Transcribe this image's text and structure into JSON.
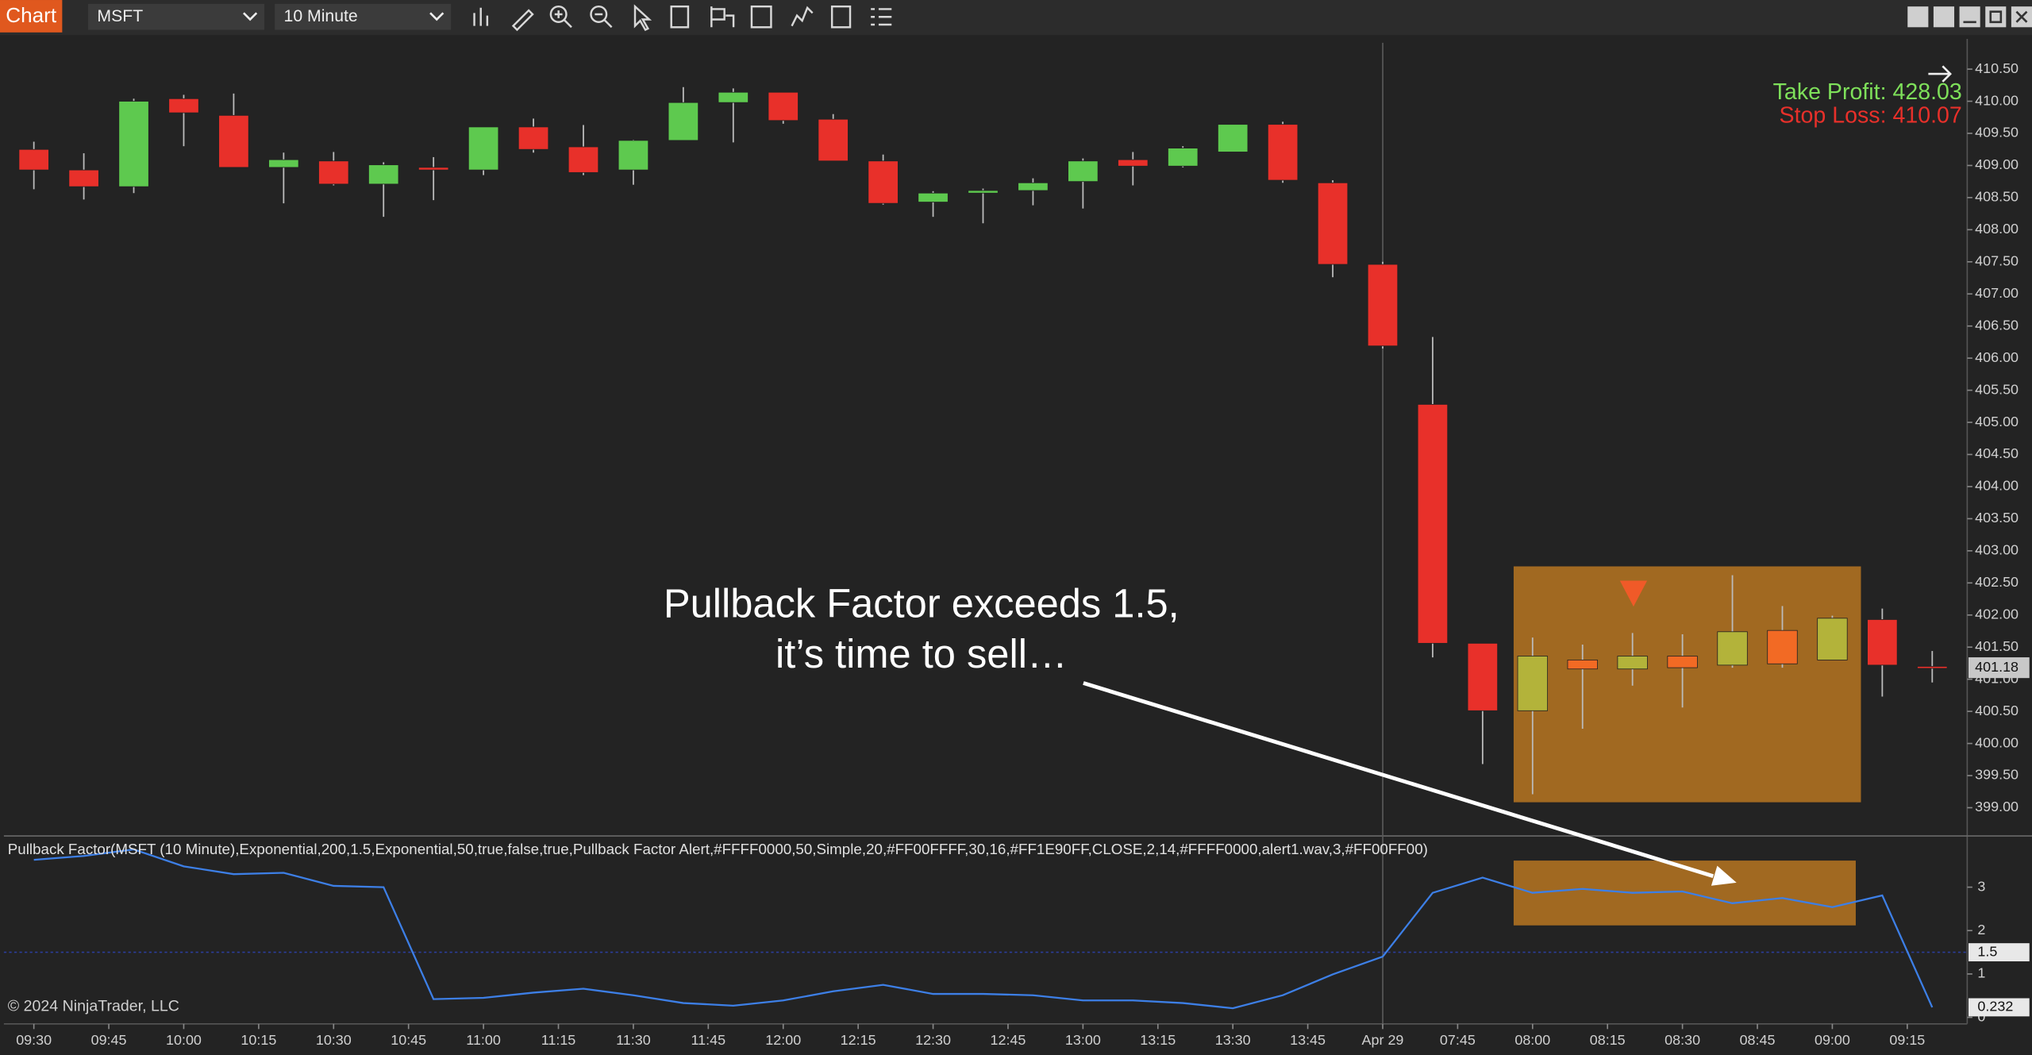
{
  "toolbar": {
    "tab": "Chart",
    "instrument": "MSFT",
    "interval": "10 Minute"
  },
  "copyright": "© 2024 NinjaTrader, LLC",
  "annotation": {
    "lines": [
      "Pullback Factor exceeds 1.5,",
      "it’s time to sell…"
    ]
  },
  "chart_data": [
    {
      "type": "candlestick",
      "open": [
        409.25,
        408.93,
        408.67,
        410.04,
        409.78,
        408.97,
        409.07,
        408.71,
        408.97,
        408.93,
        409.6,
        409.29,
        408.93,
        409.39,
        409.98,
        410.14,
        409.72,
        409.07,
        408.43,
        408.57,
        408.61,
        408.75,
        409.09,
        408.99,
        409.21,
        409.64,
        408.73,
        407.46,
        405.28,
        401.56,
        400.51,
        401.3,
        401.16,
        401.36,
        401.22,
        401.76,
        401.3,
        401.93,
        401.2
      ],
      "high": [
        409.37,
        409.19,
        410.04,
        410.1,
        410.12,
        409.2,
        409.21,
        409.05,
        409.13,
        409.6,
        409.73,
        409.63,
        409.4,
        410.22,
        410.2,
        410.14,
        409.8,
        409.17,
        408.6,
        408.64,
        408.8,
        409.11,
        409.21,
        409.3,
        409.64,
        409.68,
        408.77,
        407.5,
        406.33,
        401.56,
        401.65,
        401.54,
        401.72,
        401.7,
        402.62,
        402.14,
        401.99,
        402.1,
        401.44
      ],
      "low": [
        408.63,
        408.47,
        408.57,
        409.3,
        408.97,
        408.41,
        408.69,
        408.2,
        408.46,
        408.85,
        409.2,
        408.85,
        408.7,
        409.39,
        409.36,
        409.65,
        409.07,
        408.39,
        408.2,
        408.1,
        408.38,
        408.33,
        408.69,
        408.97,
        409.21,
        408.73,
        407.26,
        406.15,
        401.34,
        399.68,
        399.21,
        400.23,
        400.9,
        400.56,
        401.18,
        401.18,
        401.3,
        400.73,
        400.95
      ],
      "close": [
        408.93,
        408.67,
        410.0,
        409.82,
        408.97,
        409.09,
        408.71,
        409.01,
        408.93,
        409.6,
        409.25,
        408.89,
        409.39,
        409.98,
        410.14,
        409.7,
        409.07,
        408.41,
        408.57,
        408.61,
        408.73,
        409.07,
        408.99,
        409.27,
        409.64,
        408.77,
        407.46,
        406.19,
        401.56,
        400.51,
        401.36,
        401.16,
        401.36,
        401.18,
        401.74,
        401.24,
        401.95,
        401.22,
        401.18
      ],
      "colors": [
        "#e8302a",
        "#e8302a",
        "#5ec94f",
        "#e8302a",
        "#e8302a",
        "#5ec94f",
        "#e8302a",
        "#5ec94f",
        "#e8302a",
        "#5ec94f",
        "#e8302a",
        "#e8302a",
        "#5ec94f",
        "#5ec94f",
        "#5ec94f",
        "#e8302a",
        "#e8302a",
        "#e8302a",
        "#5ec94f",
        "#5ec94f",
        "#5ec94f",
        "#5ec94f",
        "#e8302a",
        "#5ec94f",
        "#5ec94f",
        "#e8302a",
        "#e8302a",
        "#e8302a",
        "#e8302a",
        "#e8302a",
        "#b3b33a",
        "#f26a24",
        "#b3b33a",
        "#f26a24",
        "#b3b33a",
        "#f26a24",
        "#b3b33a",
        "#e8302a",
        "#e8302a"
      ],
      "xlim": [
        -0.6,
        38.7
      ],
      "ylim": [
        398.56,
        410.87
      ],
      "yticks": [
        {
          "value": 399,
          "label": "399.00"
        },
        {
          "value": 399.5,
          "label": "399.50"
        },
        {
          "value": 400,
          "label": "400.00"
        },
        {
          "value": 400.5,
          "label": "400.50"
        },
        {
          "value": 401,
          "label": "401.00"
        },
        {
          "value": 401.5,
          "label": "401.50"
        },
        {
          "value": 402,
          "label": "402.00"
        },
        {
          "value": 402.5,
          "label": "402.50"
        },
        {
          "value": 403,
          "label": "403.00"
        },
        {
          "value": 403.5,
          "label": "403.50"
        },
        {
          "value": 404,
          "label": "404.00"
        },
        {
          "value": 404.5,
          "label": "404.50"
        },
        {
          "value": 405,
          "label": "405.00"
        },
        {
          "value": 405.5,
          "label": "405.50"
        },
        {
          "value": 406,
          "label": "406.00"
        },
        {
          "value": 406.5,
          "label": "406.50"
        },
        {
          "value": 407,
          "label": "407.00"
        },
        {
          "value": 407.5,
          "label": "407.50"
        },
        {
          "value": 408,
          "label": "408.00"
        },
        {
          "value": 408.5,
          "label": "408.50"
        },
        {
          "value": 409,
          "label": "409.00"
        },
        {
          "value": 409.5,
          "label": "409.50"
        },
        {
          "value": 410,
          "label": "410.00"
        },
        {
          "value": 410.5,
          "label": "410.50"
        }
      ],
      "annotations": [
        {
          "text": "Take Profit: 428.03",
          "color": "#7ee05a"
        },
        {
          "text": "Stop Loss: 410.07",
          "color": "#e8302a"
        }
      ]
    },
    {
      "type": "line",
      "series": [
        {
          "name": "Pullback Factor(MSFT (10 Minute),Exponential,200,1.5,Exponential,50,true,false,true,Pullback Factor Alert,#FFFF0000,50,Simple,20,#FF00FFFF,30,16,#FF1E90FF,CLOSE,2,14,#FFFF0000,alert1.wav,3,#FF00FF00)",
          "color": "#3d7fe6",
          "values": [
            3.63,
            3.72,
            3.87,
            3.48,
            3.3,
            3.33,
            3.03,
            3.0,
            0.42,
            0.45,
            0.57,
            0.66,
            0.51,
            0.33,
            0.27,
            0.39,
            0.6,
            0.75,
            0.54,
            0.54,
            0.51,
            0.39,
            0.39,
            0.33,
            0.21,
            0.51,
            0.99,
            1.4,
            2.87,
            3.22,
            2.87,
            2.96,
            2.87,
            2.9,
            2.63,
            2.75,
            2.54,
            2.81,
            0.232
          ]
        }
      ],
      "reference_lines": [
        1.5
      ],
      "xlim": [
        -0.6,
        38.7
      ],
      "ylim": [
        -0.15,
        4.12
      ],
      "yticks": [
        3,
        2,
        1,
        0
      ],
      "xticks": [
        {
          "value": 0,
          "label": "09:30"
        },
        {
          "value": 1.5,
          "label": "09:45"
        },
        {
          "value": 3,
          "label": "10:00"
        },
        {
          "value": 4.5,
          "label": "10:15"
        },
        {
          "value": 6,
          "label": "10:30"
        },
        {
          "value": 7.5,
          "label": "10:45"
        },
        {
          "value": 9,
          "label": "11:00"
        },
        {
          "value": 10.5,
          "label": "11:15"
        },
        {
          "value": 12,
          "label": "11:30"
        },
        {
          "value": 13.5,
          "label": "11:45"
        },
        {
          "value": 15,
          "label": "12:00"
        },
        {
          "value": 16.5,
          "label": "12:15"
        },
        {
          "value": 18,
          "label": "12:30"
        },
        {
          "value": 19.5,
          "label": "12:45"
        },
        {
          "value": 21,
          "label": "13:00"
        },
        {
          "value": 22.5,
          "label": "13:15"
        },
        {
          "value": 24,
          "label": "13:30"
        },
        {
          "value": 25.5,
          "label": "13:45"
        },
        {
          "value": 27,
          "label": "Apr 29"
        },
        {
          "value": 28.5,
          "label": "07:45"
        },
        {
          "value": 30,
          "label": "08:00"
        },
        {
          "value": 31.5,
          "label": "08:15"
        },
        {
          "value": 33,
          "label": "08:30"
        },
        {
          "value": 34.5,
          "label": "08:45"
        },
        {
          "value": 36,
          "label": "09:00"
        },
        {
          "value": 37.5,
          "label": "09:15"
        }
      ]
    }
  ]
}
